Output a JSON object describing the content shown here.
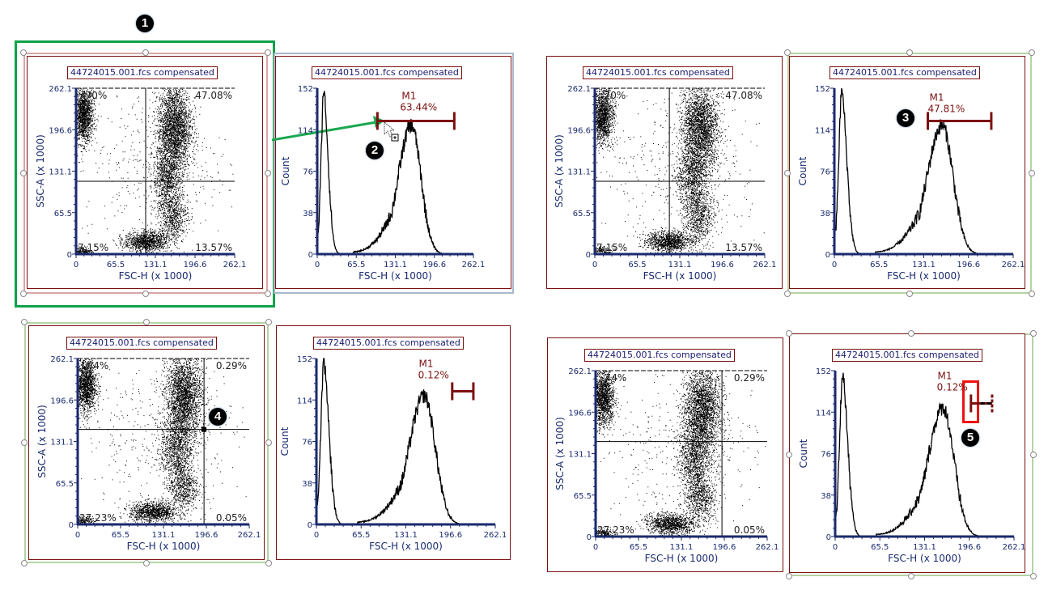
{
  "colors": {
    "axis": "#1a2a6e",
    "gate": "#7b1010",
    "selection_green": "#0fa14a",
    "frame_green": "#b5d3a4",
    "highlight_red": "#ee1111"
  },
  "callouts": [
    "1",
    "2",
    "3",
    "4",
    "5"
  ],
  "common": {
    "file_title": "44724015.001.fcs compensated",
    "x_label": "FSC-H (x 1000)",
    "y_label_dot": "SSC-A (x 1000)",
    "y_label_hist": "Count",
    "x_ticks": [
      "0",
      "65.5",
      "131.1",
      "196.6",
      "262.1"
    ],
    "y_ticks_dot": [
      "0",
      "65.5",
      "131.1",
      "196.6",
      "262.1"
    ],
    "y_ticks_hist": [
      "0",
      "38",
      "76",
      "114",
      "152"
    ]
  },
  "chart_data": [
    {
      "id": "dot-top-left",
      "type": "scatter",
      "title": "44724015.001.fcs compensated",
      "xlabel": "FSC-H (x 1000)",
      "ylabel": "SSC-A (x 1000)",
      "xlim": [
        0,
        262.1
      ],
      "ylim": [
        0,
        262.1
      ],
      "quadrant": {
        "x": 115,
        "y": 115
      },
      "quadrant_labels": {
        "top_left": "..70%",
        "top_right": "47.08%",
        "bottom_left": "7.15%",
        "bottom_right": "13.57%"
      }
    },
    {
      "id": "hist-top-left",
      "type": "line",
      "title": "44724015.001.fcs compensated",
      "xlabel": "FSC-H (x 1000)",
      "ylabel": "Count",
      "xlim": [
        0,
        262.1
      ],
      "ylim": [
        0,
        152
      ],
      "marker": {
        "name": "M1",
        "percent": "63.44%",
        "x_start": 101,
        "x_end": 230,
        "y": 122
      }
    },
    {
      "id": "dot-top-right",
      "type": "scatter",
      "title": "44724015.001.fcs compensated",
      "xlabel": "FSC-H (x 1000)",
      "ylabel": "SSC-A (x 1000)",
      "xlim": [
        0,
        262.1
      ],
      "ylim": [
        0,
        262.1
      ],
      "quadrant": {
        "x": 115,
        "y": 115
      },
      "quadrant_labels": {
        "top_left": "..70%",
        "top_right": "47.08%",
        "bottom_left": "7.15%",
        "bottom_right": "13.57%"
      }
    },
    {
      "id": "hist-top-right",
      "type": "line",
      "title": "44724015.001.fcs compensated",
      "xlabel": "FSC-H (x 1000)",
      "ylabel": "Count",
      "xlim": [
        0,
        262.1
      ],
      "ylim": [
        0,
        152
      ],
      "marker": {
        "name": "M1",
        "percent": "47.81%",
        "x_start": 137,
        "x_end": 230,
        "y": 122
      }
    },
    {
      "id": "dot-bottom-left",
      "type": "scatter",
      "title": "44724015.001.fcs compensated",
      "xlabel": "FSC-H (x 1000)",
      "ylabel": "SSC-A (x 1000)",
      "xlim": [
        0,
        262.1
      ],
      "ylim": [
        0,
        262.1
      ],
      "quadrant": {
        "x": 193,
        "y": 150
      },
      "quadrant_labels": {
        "top_left": "..44%",
        "top_right": "0.29%",
        "bottom_left": "27.23%",
        "bottom_right": "0.05%"
      }
    },
    {
      "id": "hist-bottom-left",
      "type": "line",
      "title": "44724015.001.fcs compensated",
      "xlabel": "FSC-H (x 1000)",
      "ylabel": "Count",
      "xlim": [
        0,
        262.1
      ],
      "ylim": [
        0,
        152
      ],
      "marker": {
        "name": "M1",
        "percent": "0.12%",
        "x_start": 199,
        "x_end": 230,
        "y": 122
      }
    },
    {
      "id": "dot-bottom-right",
      "type": "scatter",
      "title": "44724015.001.fcs compensated",
      "xlabel": "FSC-H (x 1000)",
      "ylabel": "SSC-A (x 1000)",
      "xlim": [
        0,
        262.1
      ],
      "ylim": [
        0,
        262.1
      ],
      "quadrant": {
        "x": 193,
        "y": 150
      },
      "quadrant_labels": {
        "top_left": "..44%",
        "top_right": "0.29%",
        "bottom_left": "27.23%",
        "bottom_right": "0.05%"
      }
    },
    {
      "id": "hist-bottom-right",
      "type": "line",
      "title": "44724015.001.fcs compensated",
      "xlabel": "FSC-H (x 1000)",
      "ylabel": "Count",
      "xlim": [
        0,
        262.1
      ],
      "ylim": [
        0,
        152
      ],
      "marker": {
        "name": "M1",
        "percent": "0.12%",
        "x_start": 199,
        "x_end": 230,
        "y": 122,
        "ghost_x_end": 230
      }
    }
  ]
}
